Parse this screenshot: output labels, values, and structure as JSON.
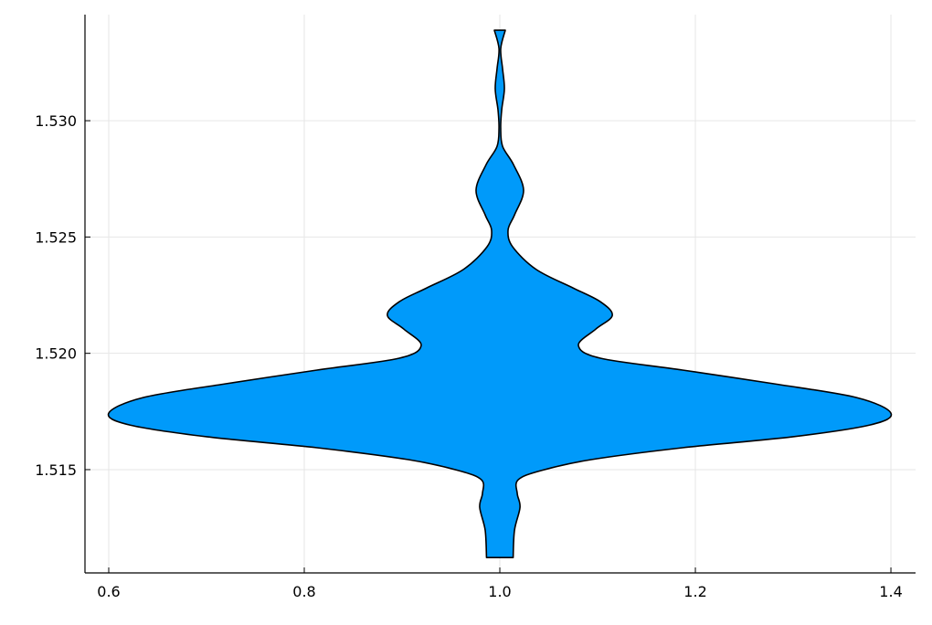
{
  "chart_data": {
    "type": "violin",
    "title": "",
    "xlabel": "",
    "ylabel": "",
    "xlim": [
      0.5757,
      1.4252
    ],
    "ylim": [
      1.51056,
      1.53456
    ],
    "xticks": [
      0.6,
      0.8,
      1.0,
      1.2,
      1.4
    ],
    "xtick_labels": [
      "0.6",
      "0.8",
      "1.0",
      "1.2",
      "1.4"
    ],
    "yticks": [
      1.515,
      1.52,
      1.525,
      1.53
    ],
    "ytick_labels": [
      "1.515",
      "1.520",
      "1.525",
      "1.530"
    ],
    "grid": true,
    "legend": "none",
    "fill_color": "#009AFA",
    "line_color": "#000000",
    "violin": {
      "center_x": 1.0,
      "profile": [
        {
          "y": 1.53389,
          "half_width": 0.0056
        },
        {
          "y": 1.5331,
          "half_width": 0.0009
        },
        {
          "y": 1.53224,
          "half_width": 0.0028
        },
        {
          "y": 1.53137,
          "half_width": 0.0047
        },
        {
          "y": 1.53047,
          "half_width": 0.0019
        },
        {
          "y": 1.52969,
          "half_width": 0.0009
        },
        {
          "y": 1.5289,
          "half_width": 0.0028
        },
        {
          "y": 1.52811,
          "half_width": 0.014
        },
        {
          "y": 1.52701,
          "half_width": 0.0243
        },
        {
          "y": 1.52595,
          "half_width": 0.015
        },
        {
          "y": 1.52529,
          "half_width": 0.0084
        },
        {
          "y": 1.52458,
          "half_width": 0.0131
        },
        {
          "y": 1.5236,
          "half_width": 0.0374
        },
        {
          "y": 1.52281,
          "half_width": 0.0748
        },
        {
          "y": 1.52222,
          "half_width": 0.1028
        },
        {
          "y": 1.52163,
          "half_width": 0.115
        },
        {
          "y": 1.52104,
          "half_width": 0.0981
        },
        {
          "y": 1.52034,
          "half_width": 0.0804
        },
        {
          "y": 1.51979,
          "half_width": 0.1028
        },
        {
          "y": 1.51928,
          "half_width": 0.1869
        },
        {
          "y": 1.51869,
          "half_width": 0.2804
        },
        {
          "y": 1.5181,
          "half_width": 0.3645
        },
        {
          "y": 1.51743,
          "half_width": 0.4
        },
        {
          "y": 1.51692,
          "half_width": 0.3785
        },
        {
          "y": 1.51641,
          "half_width": 0.2991
        },
        {
          "y": 1.51594,
          "half_width": 0.1869
        },
        {
          "y": 1.51543,
          "half_width": 0.0935
        },
        {
          "y": 1.51496,
          "half_width": 0.0421
        },
        {
          "y": 1.51456,
          "half_width": 0.0187
        },
        {
          "y": 1.51397,
          "half_width": 0.0178
        },
        {
          "y": 1.51338,
          "half_width": 0.0206
        },
        {
          "y": 1.5124,
          "half_width": 0.015
        },
        {
          "y": 1.51122,
          "half_width": 0.0136
        }
      ]
    }
  }
}
